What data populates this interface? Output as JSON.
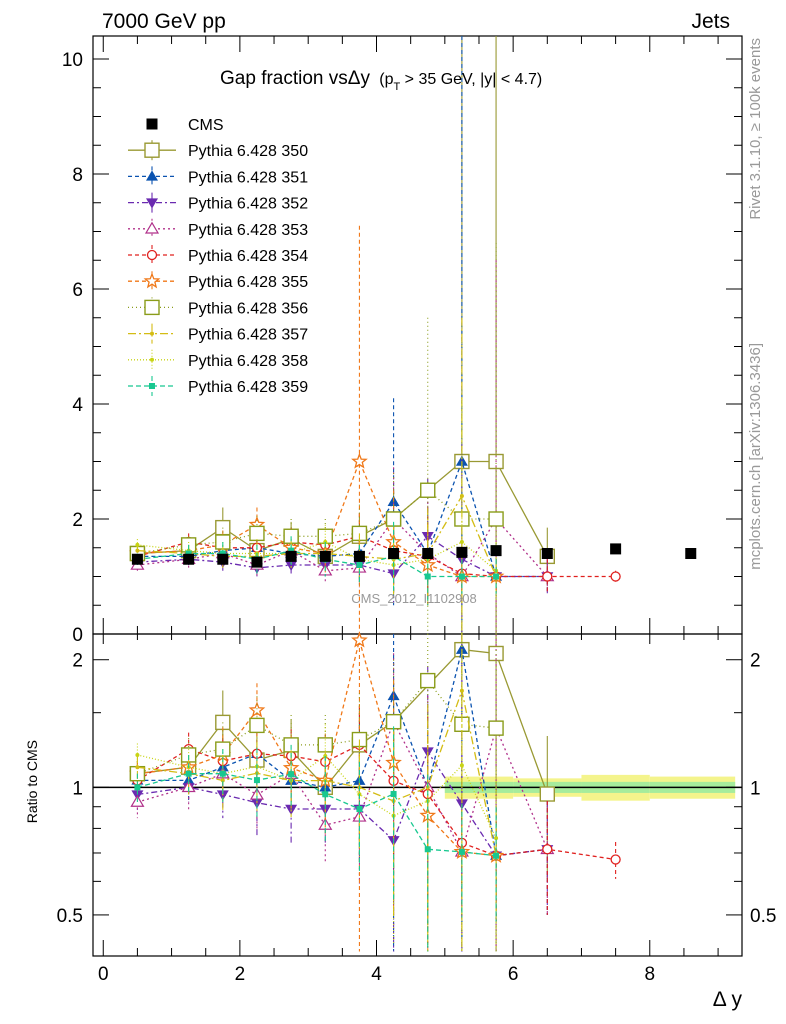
{
  "header": {
    "left": "7000 GeV pp",
    "right": "Jets",
    "side_top": "Rivet 3.1.10, ≥ 100k events",
    "side_bottom": "mcplots.cern.ch [arXiv:1306.3436]"
  },
  "chart_data": {
    "type": "line",
    "title_main": "Gap fraction vsΔy",
    "title_sub": "(p",
    "title_sub_T": "T",
    "title_sub_rest": " > 35 GeV, |y| < 4.7)",
    "watermark": "CMS_2012_I1102908",
    "xlabel": "Δ y",
    "ylabel_ratio": "Ratio to CMS",
    "xlim": [
      -0.15,
      9.35
    ],
    "ylim_main": [
      0,
      10.4
    ],
    "ylim_ratio": [
      0.4,
      2.3
    ],
    "x_ticks": [
      0,
      2,
      4,
      6,
      8
    ],
    "y_ticks_main": [
      0,
      2,
      4,
      6,
      8,
      10
    ],
    "y_ticks_ratio": [
      0.5,
      1,
      2
    ],
    "grid": false,
    "legend_position": "top-left",
    "data": {
      "name": "CMS",
      "x": [
        0.5,
        1.25,
        1.75,
        2.25,
        2.75,
        3.25,
        3.75,
        4.25,
        4.75,
        5.25,
        5.75,
        6.5,
        7.5,
        8.6
      ],
      "y": [
        1.3,
        1.3,
        1.3,
        1.25,
        1.35,
        1.35,
        1.35,
        1.4,
        1.4,
        1.42,
        1.45,
        1.4,
        1.48,
        1.4
      ],
      "band_x": [
        [
          5.0,
          6.0
        ],
        [
          6.0,
          7.0
        ],
        [
          7.0,
          8.0
        ],
        [
          8.0,
          9.25
        ]
      ],
      "band_inner": [
        0.03,
        0.03,
        0.03,
        0.03
      ],
      "band_outer": [
        0.06,
        0.05,
        0.07,
        0.06
      ]
    },
    "series": [
      {
        "name": "Pythia 6.428 350",
        "color": "#999933",
        "marker": "square-open",
        "dash": "solid",
        "x": [
          0.5,
          1.25,
          1.75,
          2.25,
          2.75,
          3.25,
          3.75,
          4.25,
          5.25,
          5.75,
          6.5
        ],
        "y": [
          1.4,
          1.45,
          1.85,
          1.45,
          1.65,
          1.35,
          1.7,
          2.0,
          3.0,
          3.0,
          1.35
        ],
        "err": [
          0.1,
          0.1,
          0.35,
          0.2,
          0.3,
          0.2,
          0.4,
          0.5,
          7.5,
          7.5,
          0.5
        ]
      },
      {
        "name": "Pythia 6.428 351",
        "color": "#0b53b0",
        "marker": "triangle-up",
        "dash": "4,3",
        "x": [
          0.5,
          1.25,
          1.75,
          2.25,
          2.75,
          3.25,
          3.75,
          4.25,
          4.75,
          5.25,
          5.75,
          6.5
        ],
        "y": [
          1.35,
          1.35,
          1.45,
          1.5,
          1.4,
          1.35,
          1.4,
          2.3,
          1.4,
          3.0,
          1.0,
          1.0
        ],
        "err": [
          0.1,
          0.15,
          0.2,
          0.25,
          0.2,
          0.2,
          0.5,
          1.8,
          0.8,
          7.5,
          0.3,
          0.3
        ]
      },
      {
        "name": "Pythia 6.428 352",
        "color": "#6a2ab0",
        "marker": "triangle-down",
        "dash": "6,3,2,3",
        "x": [
          0.5,
          1.25,
          1.75,
          2.25,
          2.75,
          3.25,
          3.75,
          4.25,
          4.75,
          5.25,
          5.75,
          6.5
        ],
        "y": [
          1.25,
          1.3,
          1.25,
          1.15,
          1.2,
          1.2,
          1.2,
          1.05,
          1.7,
          1.3,
          1.0,
          1.0
        ],
        "err": [
          0.1,
          0.1,
          0.15,
          0.2,
          0.2,
          0.2,
          0.3,
          0.5,
          1.0,
          2.0,
          0.3,
          0.3
        ]
      },
      {
        "name": "Pythia 6.428 353",
        "color": "#b0308a",
        "marker": "triangle-up-open",
        "dash": "2,3",
        "x": [
          0.5,
          1.25,
          1.75,
          2.25,
          2.75,
          3.25,
          3.75,
          4.25,
          4.75,
          5.25,
          5.75,
          6.5
        ],
        "y": [
          1.2,
          1.3,
          1.4,
          1.2,
          1.45,
          1.1,
          1.15,
          2.0,
          1.4,
          1.0,
          2.0,
          1.0
        ],
        "err": [
          0.1,
          0.15,
          0.2,
          0.2,
          0.25,
          0.2,
          0.35,
          0.9,
          0.9,
          0.3,
          4.5,
          0.3
        ]
      },
      {
        "name": "Pythia 6.428 354",
        "color": "#e0201e",
        "marker": "circle-open",
        "dash": "4,3",
        "x": [
          0.5,
          1.25,
          1.75,
          2.25,
          2.75,
          3.25,
          3.75,
          4.25,
          4.75,
          5.25,
          5.75,
          6.5,
          7.5
        ],
        "y": [
          1.35,
          1.6,
          1.5,
          1.5,
          1.6,
          1.55,
          1.7,
          1.45,
          1.35,
          1.05,
          1.0,
          1.0,
          1.0
        ],
        "err": [
          0.1,
          0.15,
          0.2,
          0.25,
          0.25,
          0.25,
          0.4,
          0.6,
          0.7,
          0.3,
          0.3,
          0.3,
          0.1
        ]
      },
      {
        "name": "Pythia 6.428 355",
        "color": "#f07818",
        "marker": "star-open",
        "dash": "4,3",
        "x": [
          0.5,
          1.25,
          1.75,
          2.25,
          2.75,
          3.25,
          3.75,
          4.25,
          4.75,
          5.25,
          5.75
        ],
        "y": [
          1.4,
          1.45,
          1.55,
          1.9,
          1.5,
          1.4,
          3.0,
          1.6,
          1.2,
          1.0,
          1.0
        ],
        "err": [
          0.1,
          0.15,
          0.25,
          0.3,
          0.3,
          0.35,
          4.1,
          0.9,
          0.7,
          0.3,
          0.3
        ]
      },
      {
        "name": "Pythia 6.428 356",
        "color": "#8a9c1a",
        "marker": "square-open",
        "dash": "1,3",
        "x": [
          0.5,
          1.25,
          1.75,
          2.25,
          2.75,
          3.25,
          3.75,
          4.25,
          4.75,
          5.25,
          5.75
        ],
        "y": [
          1.4,
          1.55,
          1.6,
          1.75,
          1.7,
          1.7,
          1.75,
          2.0,
          2.5,
          2.0,
          2.0
        ],
        "err": [
          0.1,
          0.15,
          0.25,
          0.3,
          0.3,
          0.3,
          0.5,
          0.8,
          3.0,
          3.5,
          4.8
        ]
      },
      {
        "name": "Pythia 6.428 357",
        "color": "#d4bc14",
        "marker": "dot",
        "dash": "8,3,2,3",
        "x": [
          0.5,
          1.25,
          1.75,
          2.25,
          2.75,
          3.25,
          3.75,
          4.25,
          4.75,
          5.25,
          5.75
        ],
        "y": [
          1.45,
          1.4,
          1.35,
          1.35,
          1.4,
          1.4,
          1.35,
          1.3,
          1.4,
          2.4,
          1.0
        ],
        "err": [
          0.1,
          0.15,
          0.2,
          0.25,
          0.25,
          0.25,
          0.4,
          0.6,
          0.8,
          3.1,
          0.3
        ]
      },
      {
        "name": "Pythia 6.428 358",
        "color": "#c8d414",
        "marker": "dot",
        "dash": "1,2",
        "x": [
          0.5,
          1.25,
          1.75,
          2.25,
          2.75,
          3.25,
          3.75,
          4.25,
          4.75,
          5.25,
          5.75
        ],
        "y": [
          1.55,
          1.45,
          1.4,
          1.4,
          1.4,
          1.6,
          1.3,
          1.2,
          1.3,
          1.6,
          1.1
        ],
        "err": [
          0.1,
          0.15,
          0.2,
          0.25,
          0.25,
          0.3,
          0.4,
          0.6,
          0.8,
          2.5,
          0.5
        ]
      },
      {
        "name": "Pythia 6.428 359",
        "color": "#18c890",
        "marker": "square-small",
        "dash": "5,3",
        "x": [
          0.5,
          1.25,
          1.75,
          2.25,
          2.75,
          3.25,
          3.75,
          4.25,
          4.75,
          5.25,
          5.75
        ],
        "y": [
          1.3,
          1.4,
          1.4,
          1.3,
          1.45,
          1.3,
          1.2,
          1.35,
          1.0,
          1.0,
          1.0
        ],
        "err": [
          0.1,
          0.15,
          0.2,
          0.25,
          0.25,
          0.3,
          0.35,
          0.6,
          0.5,
          0.3,
          0.3
        ]
      }
    ]
  }
}
